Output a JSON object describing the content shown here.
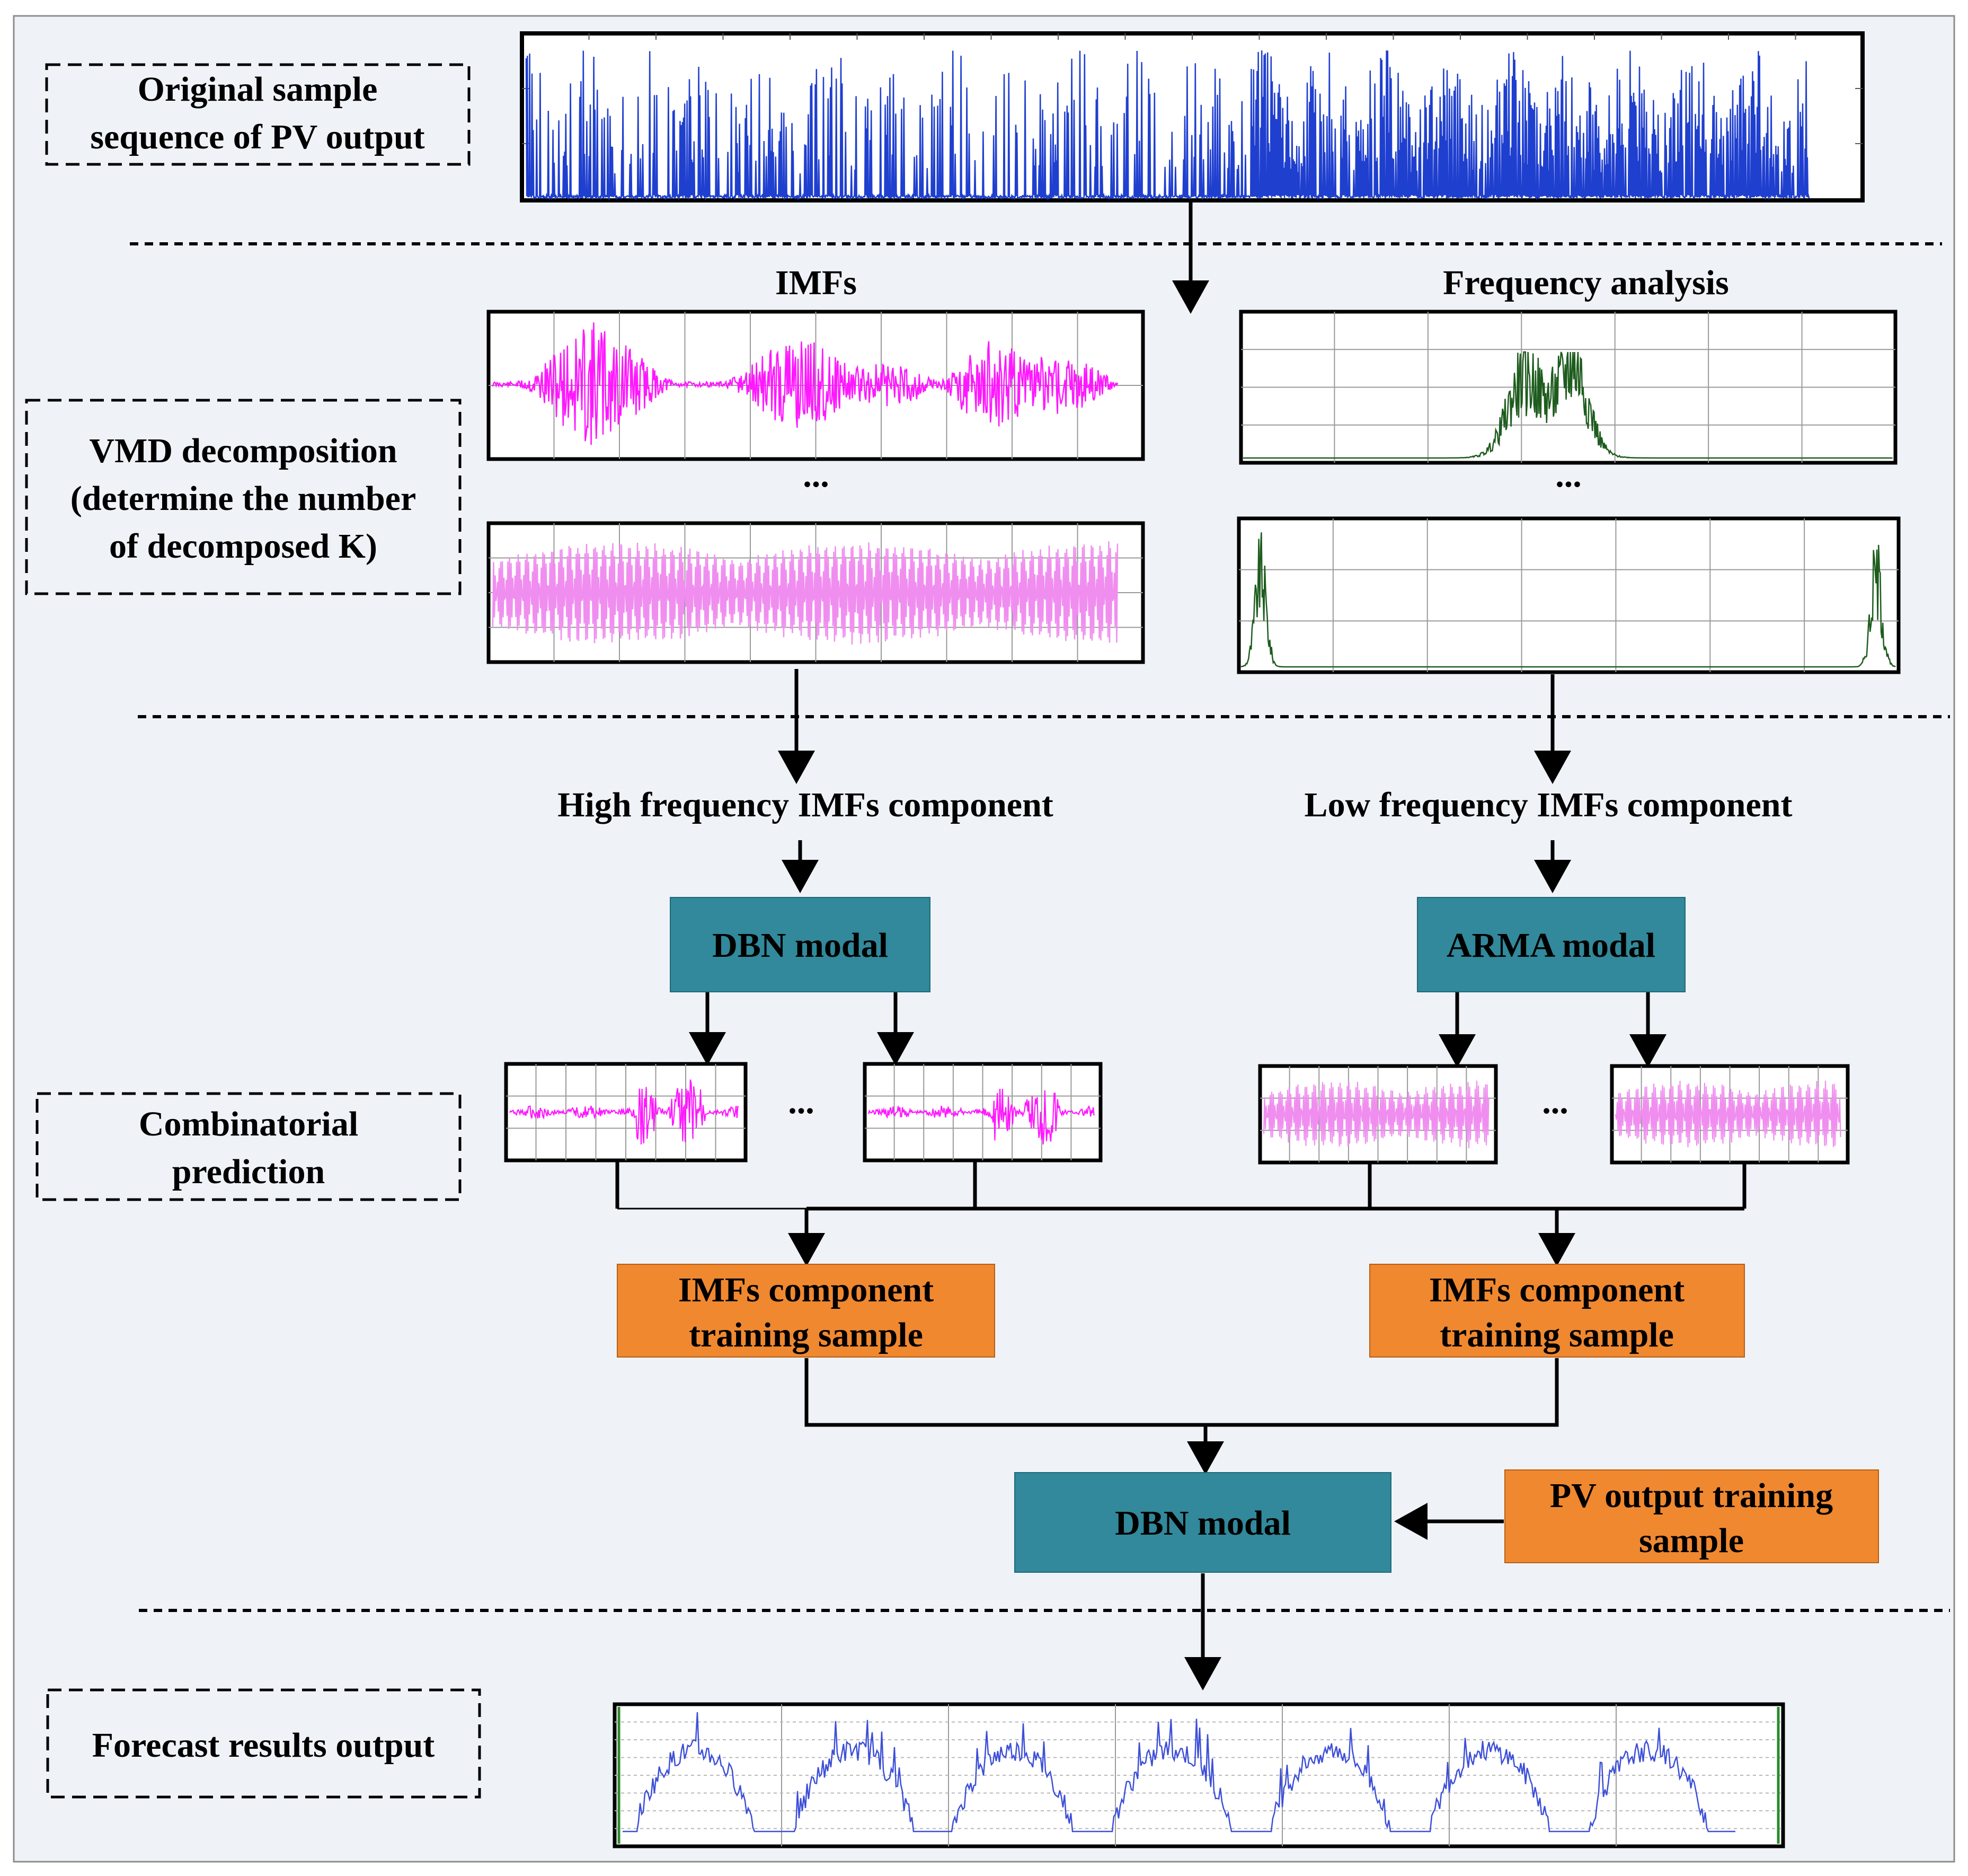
{
  "stages": {
    "original": {
      "label_lines": [
        "Original sample",
        "sequence of PV output"
      ]
    },
    "vmd": {
      "label_lines": [
        "VMD decomposition",
        "(determine the number",
        "of decomposed K)"
      ]
    },
    "combination": {
      "label_lines": [
        "Combinatorial",
        "prediction"
      ]
    },
    "forecast": {
      "label_lines": [
        "Forecast results output"
      ]
    }
  },
  "headings": {
    "imfs": "IMFs",
    "frequency": "Frequency analysis",
    "high_component": "High frequency IMFs component",
    "low_component": "Low frequency IMFs component",
    "ellipsis": "..."
  },
  "boxes": {
    "dbn_high": "DBN modal",
    "arma_low": "ARMA modal",
    "train_high_lines": [
      "IMFs component",
      "training sample"
    ],
    "train_low_lines": [
      "IMFs component",
      "training sample"
    ],
    "dbn_final": "DBN modal",
    "pv_train_lines": [
      "PV output training",
      "sample"
    ]
  },
  "colors": {
    "background": "#eff3f8",
    "border": "#8c8c8c",
    "teal_box": "#31899b",
    "orange_box": "#f08830",
    "original_signal": "#1f3fcf",
    "high_imf": "#ff18ff",
    "low_imf": "#f08ef0",
    "spectrum": "#1e5c1e",
    "forecast_line": "#3c4fd8",
    "forecast_edge": "#2d8a2d"
  }
}
